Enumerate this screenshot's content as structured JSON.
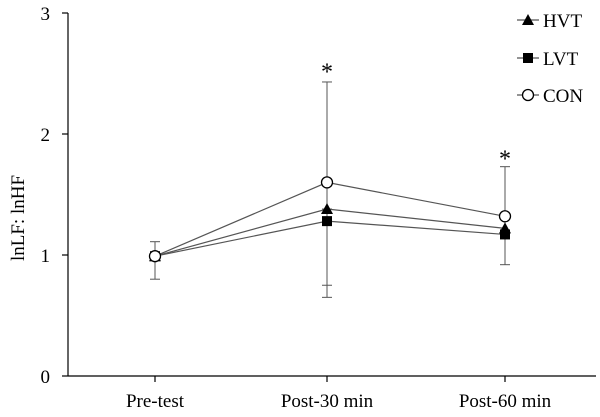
{
  "chart_data": {
    "type": "line",
    "title": "",
    "xlabel": "",
    "ylabel": "lnLF: lnHF",
    "categories": [
      "Pre-test",
      "Post-30 min",
      "Post-60 min"
    ],
    "ylim": [
      0,
      3
    ],
    "yticks": [
      0,
      1,
      2,
      3
    ],
    "grid": false,
    "legend_position": "top-right",
    "series": [
      {
        "name": "HVT",
        "marker": "triangle-filled",
        "values": [
          0.99,
          1.38,
          1.22
        ]
      },
      {
        "name": "LVT",
        "marker": "square-filled",
        "values": [
          0.99,
          1.28,
          1.17
        ]
      },
      {
        "name": "CON",
        "marker": "circle-open",
        "values": [
          0.99,
          1.6,
          1.32
        ]
      }
    ],
    "error_bars": [
      {
        "category": "Pre-test",
        "low": 0.8,
        "high": 1.11
      },
      {
        "category": "Post-30 min",
        "low": 0.65,
        "high": 2.43
      },
      {
        "category": "Post-30 min",
        "low": 0.75,
        "high": 1.38
      },
      {
        "category": "Post-60 min",
        "low": 0.92,
        "high": 1.73
      }
    ],
    "annotations": [
      {
        "text": "*",
        "category": "Post-30 min",
        "y": 2.55
      },
      {
        "text": "*",
        "category": "Post-60 min",
        "y": 1.83
      }
    ],
    "colors": {
      "line": "#555555",
      "marker": "#000000",
      "axis": "#000000"
    }
  }
}
